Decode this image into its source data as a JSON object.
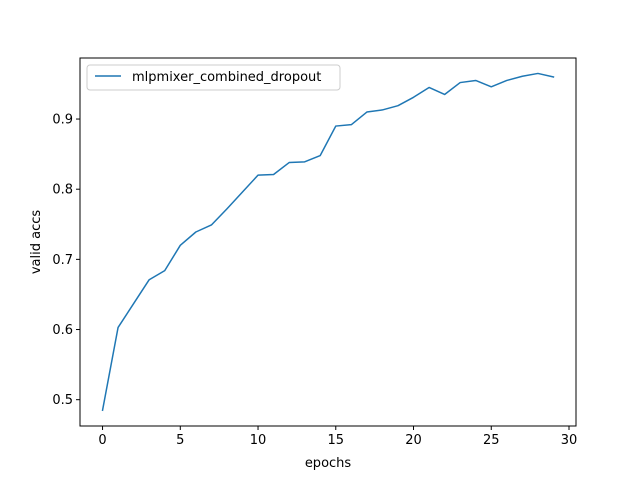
{
  "chart_data": {
    "type": "line",
    "title": "",
    "xlabel": "epochs",
    "ylabel": "valid accs",
    "xlim": [
      -1.45,
      30.45
    ],
    "ylim": [
      0.4625,
      0.987
    ],
    "xticks": [
      0,
      5,
      10,
      15,
      20,
      25,
      30
    ],
    "yticks": [
      0.5,
      0.6,
      0.7,
      0.8,
      0.9
    ],
    "xtick_labels": [
      "0",
      "5",
      "10",
      "15",
      "20",
      "25",
      "30"
    ],
    "ytick_labels": [
      "0.5",
      "0.6",
      "0.7",
      "0.8",
      "0.9"
    ],
    "grid": false,
    "legend_position": "top-left",
    "series": [
      {
        "name": "mlpmixer_combined_dropout",
        "color": "#1f77b4",
        "x": [
          0,
          1,
          2,
          3,
          4,
          5,
          6,
          7,
          8,
          9,
          10,
          11,
          12,
          13,
          14,
          15,
          16,
          17,
          18,
          19,
          20,
          21,
          22,
          23,
          24,
          25,
          26,
          27,
          28,
          29
        ],
        "y": [
          0.485,
          0.603,
          0.637,
          0.671,
          0.684,
          0.72,
          0.739,
          0.749,
          0.772,
          0.796,
          0.82,
          0.821,
          0.838,
          0.839,
          0.848,
          0.89,
          0.892,
          0.91,
          0.913,
          0.919,
          0.931,
          0.945,
          0.935,
          0.952,
          0.955,
          0.946,
          0.955,
          0.961,
          0.965,
          0.96
        ]
      }
    ]
  }
}
